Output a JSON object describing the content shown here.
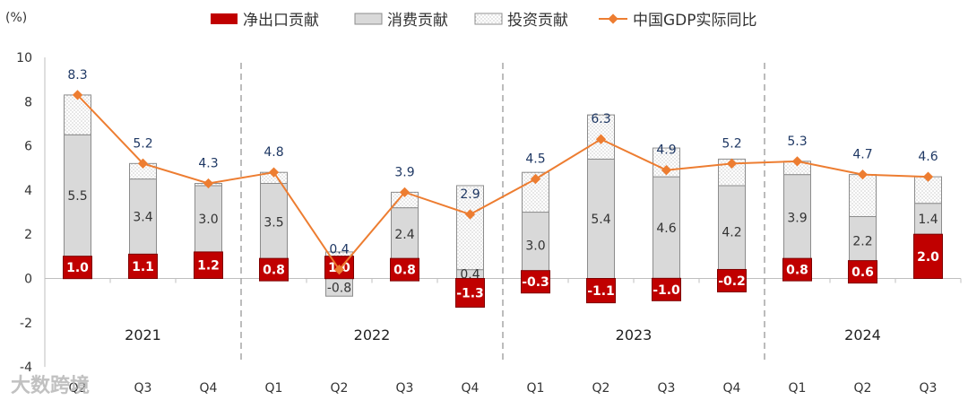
{
  "chart_data": {
    "type": "bar",
    "unit_label": "(%)",
    "ylim": [
      -4,
      10
    ],
    "yticks": [
      "-4",
      "-2",
      "0",
      "2",
      "4",
      "6",
      "8",
      "10"
    ],
    "legend": {
      "net_exports": "净出口贡献",
      "consumption": "消费贡献",
      "investment": "投资贡献",
      "gdp": "中国GDP实际同比"
    },
    "categories": [
      "Q2",
      "Q3",
      "Q4",
      "Q1",
      "Q2",
      "Q3",
      "Q4",
      "Q1",
      "Q2",
      "Q3",
      "Q4",
      "Q1",
      "Q2",
      "Q3"
    ],
    "years": [
      {
        "label": "2021",
        "start": 0,
        "end": 2
      },
      {
        "label": "2022",
        "start": 3,
        "end": 6
      },
      {
        "label": "2023",
        "start": 7,
        "end": 10
      },
      {
        "label": "2024",
        "start": 11,
        "end": 13
      }
    ],
    "series": [
      {
        "name": "净出口贡献",
        "values": [
          1.0,
          1.1,
          1.2,
          0.8,
          1.0,
          0.8,
          -1.3,
          -0.3,
          -1.1,
          -1.0,
          -0.2,
          0.8,
          0.6,
          2.0
        ],
        "labels": [
          "1.0",
          "1.1",
          "1.2",
          "0.8",
          "1.0",
          "0.8",
          "-1.3",
          "-0.3",
          "-1.1",
          "-1.0",
          "-0.2",
          "0.8",
          "0.6",
          "2.0"
        ]
      },
      {
        "name": "消费贡献",
        "values": [
          5.5,
          3.4,
          3.0,
          3.5,
          -0.8,
          2.4,
          0.4,
          3.0,
          5.4,
          4.6,
          4.2,
          3.9,
          2.2,
          1.4
        ],
        "labels": [
          "5.5",
          "3.4",
          "3.0",
          "3.5",
          "-0.8",
          "2.4",
          "0.4",
          "3.0",
          "5.4",
          "4.6",
          "4.2",
          "3.9",
          "2.2",
          "1.4"
        ]
      },
      {
        "name": "投资贡献",
        "values": [
          1.8,
          0.7,
          0.1,
          0.5,
          0.2,
          0.7,
          3.8,
          1.8,
          2.0,
          1.3,
          1.2,
          0.6,
          1.9,
          1.2
        ]
      },
      {
        "name": "中国GDP实际同比",
        "values": [
          8.3,
          5.2,
          4.3,
          4.8,
          0.4,
          3.9,
          2.9,
          4.5,
          6.3,
          4.9,
          5.2,
          5.3,
          4.7,
          4.6
        ],
        "labels": [
          "8.3",
          "5.2",
          "4.3",
          "4.8",
          "0.4",
          "3.9",
          "2.9",
          "4.5",
          "6.3",
          "4.9",
          "5.2",
          "5.3",
          "4.7",
          "4.6"
        ]
      }
    ],
    "colors": {
      "net_exports": "#c00000",
      "consumption": "#d9d9d9",
      "investment": "#ffffff",
      "gdp_line": "#ed7d31",
      "gdp_label": "#1f3864",
      "separator": "#a6a6a6"
    }
  },
  "watermark": "大数跨境"
}
